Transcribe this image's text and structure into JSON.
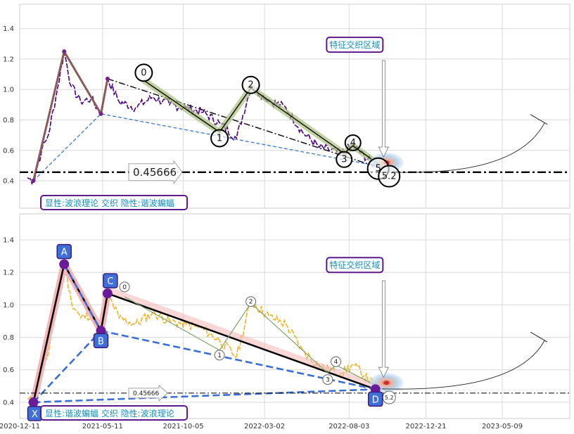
{
  "chart_data": [
    {
      "type": "line",
      "title": "",
      "xlabel": "",
      "ylabel": "",
      "ylim": [
        0.22,
        1.56
      ],
      "yticks": [
        0.4,
        0.6,
        0.8,
        1.0,
        1.2,
        1.4
      ],
      "grid": true,
      "price_series": {
        "color": "#4b0082",
        "points": [
          [
            "2020-12-25",
            0.42
          ],
          [
            "2021-01-05",
            0.4
          ],
          [
            "2021-01-20",
            0.6
          ],
          [
            "2021-02-01",
            0.7
          ],
          [
            "2021-02-15",
            0.95
          ],
          [
            "2021-03-02",
            1.25
          ],
          [
            "2021-03-15",
            1.02
          ],
          [
            "2021-04-01",
            0.92
          ],
          [
            "2021-04-20",
            0.94
          ],
          [
            "2021-05-08",
            0.84
          ],
          [
            "2021-05-20",
            1.07
          ],
          [
            "2021-06-10",
            0.92
          ],
          [
            "2021-07-10",
            0.88
          ],
          [
            "2021-08-10",
            0.95
          ],
          [
            "2021-09-10",
            0.9
          ],
          [
            "2021-10-10",
            0.88
          ],
          [
            "2021-11-10",
            0.85
          ],
          [
            "2021-12-10",
            0.78
          ],
          [
            "2022-01-10",
            0.68
          ],
          [
            "2022-02-05",
            1.02
          ],
          [
            "2022-03-10",
            0.93
          ],
          [
            "2022-04-10",
            0.88
          ],
          [
            "2022-05-10",
            0.72
          ],
          [
            "2022-06-10",
            0.62
          ],
          [
            "2022-07-20",
            0.58
          ],
          [
            "2022-08-10",
            0.63
          ],
          [
            "2022-09-20",
            0.5
          ]
        ]
      },
      "wave_counts": [
        {
          "label": "0",
          "date": "2021-07-25",
          "value": 1.11
        },
        {
          "label": "1",
          "date": "2021-12-10",
          "value": 0.68
        },
        {
          "label": "2",
          "date": "2022-02-05",
          "value": 1.03
        },
        {
          "label": "3",
          "date": "2022-07-25",
          "value": 0.54
        },
        {
          "label": "4",
          "date": "2022-08-10",
          "value": 0.65
        },
        {
          "label": "5",
          "date": "2022-09-25",
          "value": 0.48
        },
        {
          "label": "5.2",
          "date": "2022-10-15",
          "value": 0.43
        }
      ],
      "wave_path": [
        [
          "2021-07-25",
          1.06
        ],
        [
          "2021-12-10",
          0.72
        ],
        [
          "2022-02-05",
          1.01
        ],
        [
          "2022-07-25",
          0.58
        ],
        [
          "2022-08-10",
          0.63
        ],
        [
          "2022-10-15",
          0.46
        ]
      ],
      "harmonic_path": [
        [
          "2021-01-05",
          0.4
        ],
        [
          "2021-03-02",
          1.25
        ],
        [
          "2021-05-08",
          0.84
        ],
        [
          "2021-05-20",
          1.07
        ]
      ],
      "trendline_upper": [
        [
          "2021-05-20",
          1.07
        ],
        [
          "2022-10-20",
          0.46
        ]
      ],
      "trendline_lower": [
        [
          "2021-01-05",
          0.4
        ],
        [
          "2021-05-08",
          0.84
        ],
        [
          "2022-09-20",
          0.5
        ]
      ],
      "hline_value": 0.45666,
      "hline_label": "0.45666",
      "feature_zone_label": "特征交织区域",
      "feature_zone_point": [
        "2022-10-10",
        0.52
      ],
      "projection_end": [
        "2023-07-25",
        0.78
      ],
      "caption": "显性:波浪理论 交织 隐性:谐波蝙蝠"
    },
    {
      "type": "line",
      "title": "",
      "xlabel": "",
      "ylabel": "",
      "ylim": [
        0.3,
        1.56
      ],
      "yticks": [
        0.4,
        0.6,
        0.8,
        1.0,
        1.2,
        1.4
      ],
      "xticks": [
        "2020-12-11",
        "2021-05-11",
        "2021-10-05",
        "2022-03-02",
        "2022-08-03",
        "2022-12-21",
        "2023-05-09"
      ],
      "grid": true,
      "price_series": {
        "color": "#f0b429",
        "points": [
          [
            "2020-12-25",
            0.42
          ],
          [
            "2021-01-05",
            0.4
          ],
          [
            "2021-01-20",
            0.6
          ],
          [
            "2021-02-01",
            0.7
          ],
          [
            "2021-02-15",
            0.95
          ],
          [
            "2021-03-02",
            1.25
          ],
          [
            "2021-03-15",
            1.02
          ],
          [
            "2021-04-01",
            0.92
          ],
          [
            "2021-04-20",
            0.94
          ],
          [
            "2021-05-08",
            0.84
          ],
          [
            "2021-05-20",
            1.07
          ],
          [
            "2021-06-10",
            0.92
          ],
          [
            "2021-07-10",
            0.88
          ],
          [
            "2021-08-10",
            0.95
          ],
          [
            "2021-09-10",
            0.9
          ],
          [
            "2021-10-10",
            0.88
          ],
          [
            "2021-11-10",
            0.85
          ],
          [
            "2021-12-10",
            0.78
          ],
          [
            "2022-01-10",
            0.68
          ],
          [
            "2022-02-05",
            1.02
          ],
          [
            "2022-03-10",
            0.93
          ],
          [
            "2022-04-10",
            0.88
          ],
          [
            "2022-05-10",
            0.72
          ],
          [
            "2022-06-10",
            0.62
          ],
          [
            "2022-07-20",
            0.58
          ],
          [
            "2022-08-10",
            0.63
          ],
          [
            "2022-09-20",
            0.5
          ]
        ]
      },
      "harmonic_points": [
        {
          "label": "X",
          "date": "2021-01-05",
          "value": 0.4
        },
        {
          "label": "A",
          "date": "2021-03-02",
          "value": 1.25
        },
        {
          "label": "B",
          "date": "2021-05-08",
          "value": 0.84
        },
        {
          "label": "C",
          "date": "2021-05-20",
          "value": 1.07
        },
        {
          "label": "D",
          "date": "2022-09-20",
          "value": 0.48
        }
      ],
      "wave_counts": [
        {
          "label": "0",
          "date": "2021-06-20",
          "value": 1.11
        },
        {
          "label": "1",
          "date": "2021-12-10",
          "value": 0.69
        },
        {
          "label": "2",
          "date": "2022-02-05",
          "value": 1.02
        },
        {
          "label": "3",
          "date": "2022-06-25",
          "value": 0.54
        },
        {
          "label": "4",
          "date": "2022-07-10",
          "value": 0.65
        },
        {
          "label": "5.2",
          "date": "2022-10-15",
          "value": 0.43
        }
      ],
      "wave_path": [
        [
          "2021-06-20",
          1.05
        ],
        [
          "2021-12-10",
          0.72
        ],
        [
          "2022-02-05",
          1.01
        ],
        [
          "2022-06-25",
          0.58
        ],
        [
          "2022-07-10",
          0.63
        ],
        [
          "2022-10-15",
          0.46
        ]
      ],
      "hline_value": 0.45666,
      "hline_label": "0.45666",
      "feature_zone_label": "特征交织区域",
      "feature_zone_point": [
        "2022-10-10",
        0.52
      ],
      "projection_end": [
        "2023-07-25",
        0.78
      ],
      "caption": "显性:谐波蝙蝠 交织 隐性:波浪理论"
    }
  ]
}
